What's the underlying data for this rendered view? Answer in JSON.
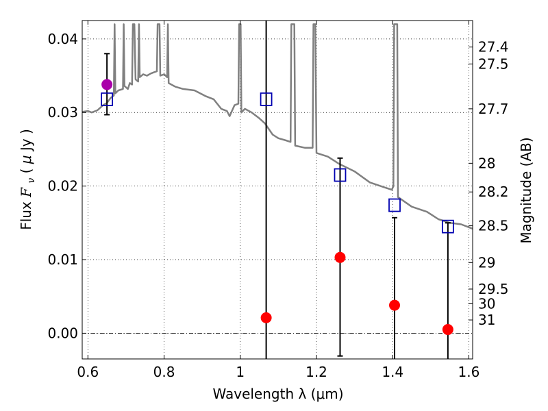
{
  "chart_data": {
    "type": "scatter",
    "xlabel": "Wavelength  λ (μm)",
    "ylabel_parts": [
      "Flux ",
      "F",
      "ν",
      " ( ",
      "μ",
      "Jy )"
    ],
    "y2label": "Magnitude (AB)",
    "xlim": [
      0.585,
      1.61
    ],
    "ylim": [
      -0.0035,
      0.0425
    ],
    "grid": true,
    "x_ticks": [
      0.6,
      0.8,
      1.0,
      1.2,
      1.4,
      1.6
    ],
    "x_tick_labels": [
      "0.6",
      "0.8",
      "1",
      "1.2",
      "1.4",
      "1.6"
    ],
    "y_ticks": [
      0.0,
      0.01,
      0.02,
      0.03,
      0.04
    ],
    "y_tick_labels": [
      "0.00",
      "0.01",
      "0.02",
      "0.03",
      "0.04"
    ],
    "mag_ticks": [
      {
        "label": "27.4",
        "flux": 0.0389
      },
      {
        "label": "27.5",
        "flux": 0.0366
      },
      {
        "label": "27.7",
        "flux": 0.0305
      },
      {
        "label": "28",
        "flux": 0.0231
      },
      {
        "label": "28.2",
        "flux": 0.0192
      },
      {
        "label": "28.5",
        "flux": 0.0146
      },
      {
        "label": "29",
        "flux": 0.0096
      },
      {
        "label": "29.5",
        "flux": 0.006
      },
      {
        "label": "30",
        "flux": 0.004
      },
      {
        "label": "31",
        "flux": 0.0018
      }
    ],
    "sed_model": {
      "name": "",
      "color": "#808080",
      "points": [
        [
          0.585,
          0.0301
        ],
        [
          0.6,
          0.0302
        ],
        [
          0.61,
          0.03
        ],
        [
          0.625,
          0.0303
        ],
        [
          0.64,
          0.031
        ],
        [
          0.65,
          0.0313
        ],
        [
          0.66,
          0.032
        ],
        [
          0.668,
          0.0323
        ],
        [
          0.67,
          0.042
        ],
        [
          0.672,
          0.0326
        ],
        [
          0.68,
          0.033
        ],
        [
          0.692,
          0.0332
        ],
        [
          0.694,
          0.042
        ],
        [
          0.696,
          0.0336
        ],
        [
          0.705,
          0.0332
        ],
        [
          0.71,
          0.034
        ],
        [
          0.716,
          0.0338
        ],
        [
          0.718,
          0.042
        ],
        [
          0.722,
          0.042
        ],
        [
          0.725,
          0.0345
        ],
        [
          0.732,
          0.0342
        ],
        [
          0.734,
          0.042
        ],
        [
          0.736,
          0.0348
        ],
        [
          0.745,
          0.0352
        ],
        [
          0.755,
          0.035
        ],
        [
          0.765,
          0.0353
        ],
        [
          0.775,
          0.0355
        ],
        [
          0.781,
          0.0356
        ],
        [
          0.783,
          0.042
        ],
        [
          0.788,
          0.042
        ],
        [
          0.79,
          0.035
        ],
        [
          0.8,
          0.0352
        ],
        [
          0.808,
          0.0348
        ],
        [
          0.81,
          0.042
        ],
        [
          0.812,
          0.034
        ],
        [
          0.83,
          0.0335
        ],
        [
          0.85,
          0.0332
        ],
        [
          0.88,
          0.033
        ],
        [
          0.91,
          0.0322
        ],
        [
          0.93,
          0.0318
        ],
        [
          0.95,
          0.0305
        ],
        [
          0.965,
          0.0302
        ],
        [
          0.972,
          0.0295
        ],
        [
          0.985,
          0.031
        ],
        [
          0.995,
          0.0312
        ],
        [
          0.997,
          0.042
        ],
        [
          1.001,
          0.042
        ],
        [
          1.003,
          0.03
        ],
        [
          1.012,
          0.0305
        ],
        [
          1.03,
          0.03
        ],
        [
          1.05,
          0.0292
        ],
        [
          1.065,
          0.0285
        ],
        [
          1.085,
          0.027
        ],
        [
          1.1,
          0.0265
        ],
        [
          1.12,
          0.0262
        ],
        [
          1.132,
          0.026
        ],
        [
          1.134,
          0.042
        ],
        [
          1.142,
          0.042
        ],
        [
          1.144,
          0.0255
        ],
        [
          1.17,
          0.0252
        ],
        [
          1.19,
          0.0252
        ],
        [
          1.192,
          0.042
        ],
        [
          1.197,
          0.042
        ],
        [
          1.2,
          0.0245
        ],
        [
          1.23,
          0.024
        ],
        [
          1.26,
          0.023
        ],
        [
          1.3,
          0.022
        ],
        [
          1.34,
          0.0205
        ],
        [
          1.38,
          0.0198
        ],
        [
          1.398,
          0.0195
        ],
        [
          1.402,
          0.02
        ],
        [
          1.404,
          0.042
        ],
        [
          1.412,
          0.042
        ],
        [
          1.414,
          0.0185
        ],
        [
          1.45,
          0.0172
        ],
        [
          1.49,
          0.0165
        ],
        [
          1.52,
          0.0155
        ],
        [
          1.55,
          0.015
        ],
        [
          1.58,
          0.0148
        ],
        [
          1.61,
          0.0142
        ]
      ]
    },
    "model_photometry": {
      "name": "",
      "marker": "open-square",
      "color": "#0000b0",
      "points": [
        {
          "x": 0.65,
          "y": 0.0318
        },
        {
          "x": 1.068,
          "y": 0.0318
        },
        {
          "x": 1.262,
          "y": 0.0215
        },
        {
          "x": 1.405,
          "y": 0.0174
        },
        {
          "x": 1.545,
          "y": 0.0145
        }
      ]
    },
    "observed_photometry": {
      "name": "",
      "marker": "filled-circle",
      "points": [
        {
          "x": 0.65,
          "y": 0.0338,
          "err_lo": 0.0297,
          "err_hi": 0.038,
          "color": "#aa00aa"
        },
        {
          "x": 1.068,
          "y": 0.0021,
          "err_lo": -0.0035,
          "err_hi": 0.0425,
          "color": "#ff0000"
        },
        {
          "x": 1.262,
          "y": 0.0103,
          "err_lo": -0.0031,
          "err_hi": 0.0238,
          "color": "#ff0000"
        },
        {
          "x": 1.405,
          "y": 0.0038,
          "err_lo": -0.0035,
          "err_hi": 0.0157,
          "color": "#ff0000"
        },
        {
          "x": 1.545,
          "y": 0.0005,
          "err_lo": -0.0035,
          "err_hi": 0.015,
          "color": "#ff0000"
        }
      ]
    }
  }
}
